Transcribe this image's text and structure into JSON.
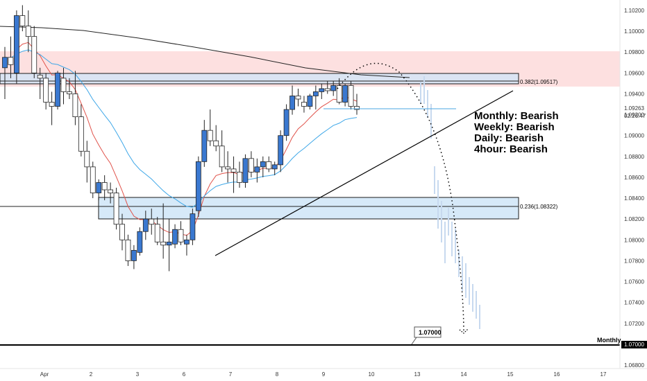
{
  "chart_data": {
    "type": "candlestick",
    "x_ticks": [
      "Apr",
      "2",
      "3",
      "6",
      "7",
      "8",
      "9",
      "10",
      "13",
      "14",
      "15",
      "16",
      "17"
    ],
    "y_ticks": [
      "1.10200",
      "1.10000",
      "1.09800",
      "1.09600",
      "1.09400",
      "1.09200",
      "1.09000",
      "1.08800",
      "1.08600",
      "1.08400",
      "1.08200",
      "1.08000",
      "1.07800",
      "1.07600",
      "1.07400",
      "1.07200",
      "1.07000",
      "1.06800"
    ],
    "ylim": [
      1.0675,
      1.1025
    ],
    "current_price": "1.09263",
    "countdown": "02:26:47",
    "monthly_level": {
      "label": "1.07000",
      "tag": "Monthly",
      "value": 1.07
    },
    "fib_382": {
      "label": "0.382(1.09517)",
      "value": 1.09517
    },
    "fib_236": {
      "label": "0.236(1.08322)",
      "value": 1.08322
    },
    "annotations": [
      "Monthly: Bearish",
      "Weekly: Bearish",
      "Daily: Bearish",
      "4hour: Bearish"
    ],
    "candles": [
      {
        "o": 1.0965,
        "h": 1.0985,
        "l": 1.0935,
        "c": 1.0975
      },
      {
        "o": 1.0975,
        "h": 1.0995,
        "l": 1.0955,
        "c": 1.0968
      },
      {
        "o": 1.096,
        "h": 1.102,
        "l": 1.095,
        "c": 1.1015
      },
      {
        "o": 1.1015,
        "h": 1.1025,
        "l": 1.1,
        "c": 1.1005
      },
      {
        "o": 1.1005,
        "h": 1.102,
        "l": 1.098,
        "c": 1.0995
      },
      {
        "o": 1.0995,
        "h": 1.1005,
        "l": 1.0955,
        "c": 1.096
      },
      {
        "o": 1.0958,
        "h": 1.0965,
        "l": 1.0935,
        "c": 1.0955
      },
      {
        "o": 1.0955,
        "h": 1.096,
        "l": 1.0925,
        "c": 1.0932
      },
      {
        "o": 1.0932,
        "h": 1.0942,
        "l": 1.091,
        "c": 1.0928
      },
      {
        "o": 1.0928,
        "h": 1.0962,
        "l": 1.0925,
        "c": 1.096
      },
      {
        "o": 1.0955,
        "h": 1.0965,
        "l": 1.093,
        "c": 1.0942
      },
      {
        "o": 1.0942,
        "h": 1.0955,
        "l": 1.0935,
        "c": 1.094
      },
      {
        "o": 1.094,
        "h": 1.0962,
        "l": 1.091,
        "c": 1.0918
      },
      {
        "o": 1.0918,
        "h": 1.093,
        "l": 1.088,
        "c": 1.0885
      },
      {
        "o": 1.0885,
        "h": 1.0895,
        "l": 1.0855,
        "c": 1.087
      },
      {
        "o": 1.087,
        "h": 1.0875,
        "l": 1.084,
        "c": 1.0845
      },
      {
        "o": 1.0845,
        "h": 1.0858,
        "l": 1.0838,
        "c": 1.0855
      },
      {
        "o": 1.0855,
        "h": 1.0862,
        "l": 1.0838,
        "c": 1.0848
      },
      {
        "o": 1.0848,
        "h": 1.0855,
        "l": 1.0835,
        "c": 1.0845
      },
      {
        "o": 1.0845,
        "h": 1.085,
        "l": 1.081,
        "c": 1.0815
      },
      {
        "o": 1.0815,
        "h": 1.0825,
        "l": 1.079,
        "c": 1.08
      },
      {
        "o": 1.08,
        "h": 1.0805,
        "l": 1.0775,
        "c": 1.078
      },
      {
        "o": 1.078,
        "h": 1.0795,
        "l": 1.0772,
        "c": 1.079
      },
      {
        "o": 1.0788,
        "h": 1.0812,
        "l": 1.0785,
        "c": 1.0808
      },
      {
        "o": 1.0808,
        "h": 1.0828,
        "l": 1.08,
        "c": 1.082
      },
      {
        "o": 1.082,
        "h": 1.083,
        "l": 1.0805,
        "c": 1.0815
      },
      {
        "o": 1.0815,
        "h": 1.0822,
        "l": 1.0795,
        "c": 1.0798
      },
      {
        "o": 1.0798,
        "h": 1.0835,
        "l": 1.0782,
        "c": 1.0795
      },
      {
        "o": 1.0795,
        "h": 1.082,
        "l": 1.077,
        "c": 1.0798
      },
      {
        "o": 1.0796,
        "h": 1.0815,
        "l": 1.0792,
        "c": 1.081
      },
      {
        "o": 1.081,
        "h": 1.0818,
        "l": 1.0795,
        "c": 1.0798
      },
      {
        "o": 1.0796,
        "h": 1.0805,
        "l": 1.0785,
        "c": 1.08
      },
      {
        "o": 1.08,
        "h": 1.083,
        "l": 1.0795,
        "c": 1.0825
      },
      {
        "o": 1.0828,
        "h": 1.088,
        "l": 1.0822,
        "c": 1.0875
      },
      {
        "o": 1.0875,
        "h": 1.0915,
        "l": 1.087,
        "c": 1.0905
      },
      {
        "o": 1.0905,
        "h": 1.0925,
        "l": 1.089,
        "c": 1.0895
      },
      {
        "o": 1.0895,
        "h": 1.091,
        "l": 1.0885,
        "c": 1.089
      },
      {
        "o": 1.089,
        "h": 1.0905,
        "l": 1.0865,
        "c": 1.087
      },
      {
        "o": 1.087,
        "h": 1.0885,
        "l": 1.0855,
        "c": 1.0868
      },
      {
        "o": 1.0868,
        "h": 1.088,
        "l": 1.0845,
        "c": 1.0865
      },
      {
        "o": 1.0865,
        "h": 1.0875,
        "l": 1.085,
        "c": 1.0855
      },
      {
        "o": 1.0855,
        "h": 1.0882,
        "l": 1.085,
        "c": 1.0878
      },
      {
        "o": 1.0878,
        "h": 1.0885,
        "l": 1.086,
        "c": 1.0865
      },
      {
        "o": 1.0865,
        "h": 1.0878,
        "l": 1.0855,
        "c": 1.087
      },
      {
        "o": 1.087,
        "h": 1.088,
        "l": 1.086,
        "c": 1.0875
      },
      {
        "o": 1.0875,
        "h": 1.088,
        "l": 1.0865,
        "c": 1.0868
      },
      {
        "o": 1.0868,
        "h": 1.0875,
        "l": 1.0862,
        "c": 1.0872
      },
      {
        "o": 1.0872,
        "h": 1.0905,
        "l": 1.0865,
        "c": 1.09
      },
      {
        "o": 1.09,
        "h": 1.093,
        "l": 1.0895,
        "c": 1.0925
      },
      {
        "o": 1.0925,
        "h": 1.0948,
        "l": 1.092,
        "c": 1.0938
      },
      {
        "o": 1.0938,
        "h": 1.0945,
        "l": 1.0928,
        "c": 1.0935
      },
      {
        "o": 1.0932,
        "h": 1.0938,
        "l": 1.0922,
        "c": 1.0928
      },
      {
        "o": 1.0928,
        "h": 1.094,
        "l": 1.0925,
        "c": 1.0938
      },
      {
        "o": 1.0938,
        "h": 1.0948,
        "l": 1.0925,
        "c": 1.0942
      },
      {
        "o": 1.0942,
        "h": 1.095,
        "l": 1.0935,
        "c": 1.0945
      },
      {
        "o": 1.0945,
        "h": 1.0952,
        "l": 1.094,
        "c": 1.0943
      },
      {
        "o": 1.0943,
        "h": 1.0952,
        "l": 1.0938,
        "c": 1.0948
      },
      {
        "o": 1.0948,
        "h": 1.0955,
        "l": 1.093,
        "c": 1.0932
      },
      {
        "o": 1.0932,
        "h": 1.095,
        "l": 1.0928,
        "c": 1.0948
      },
      {
        "o": 1.0948,
        "h": 1.0952,
        "l": 1.0925,
        "c": 1.0928
      },
      {
        "o": 1.0928,
        "h": 1.094,
        "l": 1.092,
        "c": 1.0925
      }
    ],
    "colors": {
      "bull": "#3a78d0",
      "bear": "#ffffff",
      "ema_fast": "#e0524a",
      "ema_slow": "#3ea7e8",
      "sma": "#222222",
      "resistance_zone": "#ffd6d6",
      "fib_zone": "#dbe6f7"
    }
  }
}
